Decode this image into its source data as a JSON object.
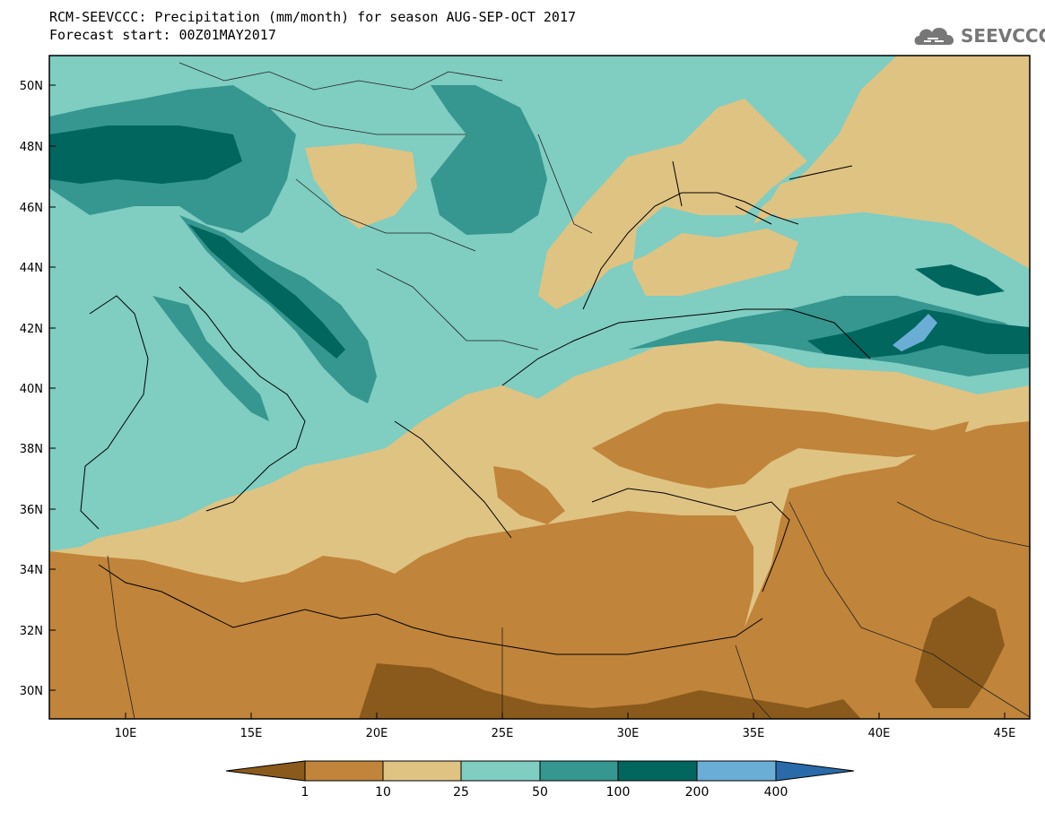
{
  "header": {
    "title_line1": "RCM-SEEVCCC: Precipitation (mm/month) for season AUG-SEP-OCT 2017",
    "title_line2": "Forecast start: 00Z01MAY2017",
    "logo_text": "SEEVCCC"
  },
  "map": {
    "lat_labels": [
      "50N",
      "48N",
      "46N",
      "44N",
      "42N",
      "40N",
      "38N",
      "36N",
      "34N",
      "32N",
      "30N"
    ],
    "lon_labels": [
      "10E",
      "15E",
      "20E",
      "25E",
      "30E",
      "35E",
      "40E",
      "45E"
    ],
    "lat_range": [
      29,
      51
    ],
    "lon_range": [
      7,
      46
    ]
  },
  "legend": {
    "boundaries": [
      "1",
      "10",
      "25",
      "50",
      "100",
      "200",
      "400"
    ],
    "colors": [
      "#8a5a1c",
      "#c0843a",
      "#dfc383",
      "#80cdc1",
      "#35978f",
      "#01665e",
      "#6aaed6",
      "#2a6aa8"
    ]
  },
  "colors": {
    "dark_brown": "#8a5a1c",
    "brown": "#c0843a",
    "tan": "#dfc383",
    "light_teal": "#80cdc1",
    "teal": "#35978f",
    "dark_teal": "#01665e",
    "light_blue": "#6aaed6"
  }
}
